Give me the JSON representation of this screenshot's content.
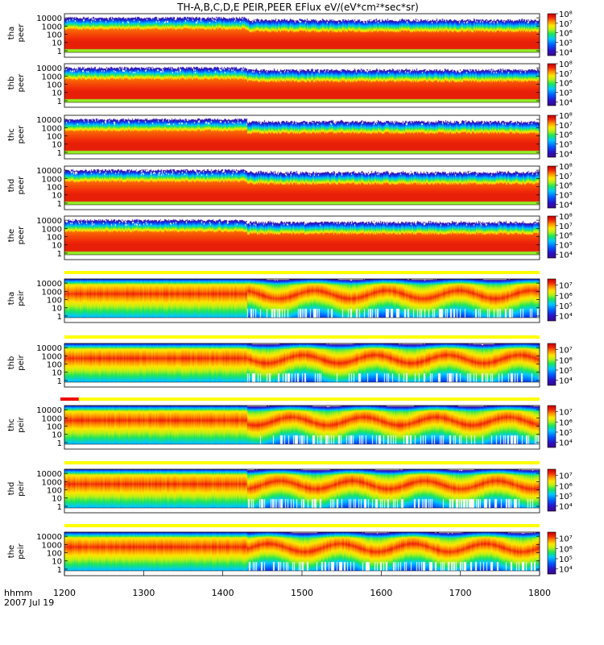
{
  "chart_data": {
    "type": "heatmap",
    "title": "TH-A,B,C,D,E  PEIR,PEER  EFlux  eV/(eV*cm²*sec*sr)",
    "xaxis": {
      "label_line1": "hhmm",
      "label_line2": "2007 Jul 19",
      "range": [
        1200,
        1800
      ],
      "ticks": [
        1200,
        1300,
        1400,
        1500,
        1600,
        1700,
        1800
      ],
      "tick_labels": [
        "1200",
        "1300",
        "1400",
        "1500",
        "1600",
        "1700",
        "1800"
      ]
    },
    "yaxis_ticks": [
      1,
      10,
      100,
      1000,
      10000
    ],
    "yaxis_tick_labels": [
      "1",
      "10",
      "100",
      "1000",
      "10000"
    ],
    "yaxis_range_log10": [
      -0.2,
      4.5
    ],
    "panels": [
      {
        "probe": "tha",
        "product": "peer",
        "cbar_log10": [
          3.6,
          8.0
        ],
        "cbar_labels": [
          "10⁴",
          "10⁵",
          "10⁶",
          "10⁷",
          "10⁸"
        ],
        "cbar_exps": [
          4,
          5,
          6,
          7,
          8
        ],
        "flag": "none"
      },
      {
        "probe": "thb",
        "product": "peer",
        "cbar_log10": [
          3.6,
          8.0
        ],
        "cbar_labels": [
          "10⁴",
          "10⁵",
          "10⁶",
          "10⁷",
          "10⁸"
        ],
        "cbar_exps": [
          4,
          5,
          6,
          7,
          8
        ],
        "flag": "none"
      },
      {
        "probe": "thc",
        "product": "peer",
        "cbar_log10": [
          3.6,
          8.0
        ],
        "cbar_labels": [
          "10⁴",
          "10⁵",
          "10⁶",
          "10⁷",
          "10⁸"
        ],
        "cbar_exps": [
          4,
          5,
          6,
          7,
          8
        ],
        "flag": "none"
      },
      {
        "probe": "thd",
        "product": "peer",
        "cbar_log10": [
          3.6,
          8.0
        ],
        "cbar_labels": [
          "10⁴",
          "10⁵",
          "10⁶",
          "10⁷",
          "10⁸"
        ],
        "cbar_exps": [
          4,
          5,
          6,
          7,
          8
        ],
        "flag": "none"
      },
      {
        "probe": "the",
        "product": "peer",
        "cbar_log10": [
          3.6,
          8.0
        ],
        "cbar_labels": [
          "10⁴",
          "10⁵",
          "10⁶",
          "10⁷",
          "10⁸"
        ],
        "cbar_exps": [
          4,
          5,
          6,
          7,
          8
        ],
        "flag": "none"
      },
      {
        "probe": "tha",
        "product": "peir",
        "cbar_log10": [
          3.5,
          7.6
        ],
        "cbar_labels": [
          "10⁴",
          "10⁵",
          "10⁶",
          "10⁷"
        ],
        "cbar_exps": [
          4,
          5,
          6,
          7
        ],
        "flag": "yellow"
      },
      {
        "probe": "thb",
        "product": "peir",
        "cbar_log10": [
          3.5,
          7.6
        ],
        "cbar_labels": [
          "10⁴",
          "10⁵",
          "10⁶",
          "10⁷"
        ],
        "cbar_exps": [
          4,
          5,
          6,
          7
        ],
        "flag": "yellow"
      },
      {
        "probe": "thc",
        "product": "peir",
        "cbar_log10": [
          3.5,
          7.6
        ],
        "cbar_labels": [
          "10⁴",
          "10⁵",
          "10⁶",
          "10⁷"
        ],
        "cbar_exps": [
          4,
          5,
          6,
          7
        ],
        "flag": "red-yellow"
      },
      {
        "probe": "thd",
        "product": "peir",
        "cbar_log10": [
          3.5,
          7.6
        ],
        "cbar_labels": [
          "10⁴",
          "10⁵",
          "10⁶",
          "10⁷"
        ],
        "cbar_exps": [
          4,
          5,
          6,
          7
        ],
        "flag": "yellow"
      },
      {
        "probe": "the",
        "product": "peir",
        "cbar_log10": [
          3.5,
          7.6
        ],
        "cbar_labels": [
          "10⁴",
          "10⁵",
          "10⁶",
          "10⁷"
        ],
        "cbar_exps": [
          4,
          5,
          6,
          7
        ],
        "flag": "yellow"
      }
    ],
    "quality_flags": {
      "yellow_range": [
        1200,
        1800
      ],
      "red_range": [
        1200,
        1218
      ]
    },
    "colors": {
      "red": "#d01010",
      "orange": "#ff8a00",
      "yellow": "#ffff00",
      "green": "#1ee050",
      "cyan": "#00c8ff",
      "blue": "#1040ff",
      "purple": "#3a0a8a",
      "flag_yellow": "#ffff00",
      "flag_red": "#ee0000"
    },
    "features": {
      "boundary_time": 1431,
      "electron_peak_energy_ev": 50,
      "ion_peak_energy_ev": 800
    }
  }
}
